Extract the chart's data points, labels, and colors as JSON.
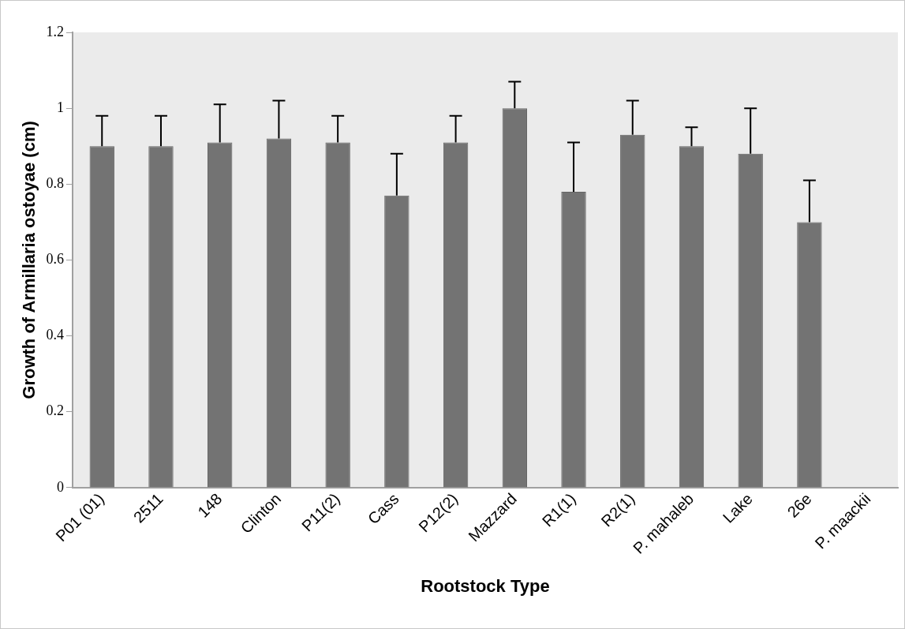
{
  "chart_data": {
    "type": "bar",
    "xlabel": "Rootstock Type",
    "ylabel": "Growth of Armillaria ostoyae (cm)",
    "categories": [
      "P01 (01)",
      "2511",
      "148",
      "Clinton",
      "P11(2)",
      "Cass",
      "P12(2)",
      "Mazzard",
      "R1(1)",
      "R2(1)",
      "P. mahaleb",
      "Lake",
      "26e",
      "P. maackii"
    ],
    "values": [
      0.9,
      0.9,
      0.91,
      0.92,
      0.91,
      0.77,
      0.91,
      1.0,
      0.78,
      0.93,
      0.9,
      0.88,
      0.7,
      0
    ],
    "errors": [
      [
        0.9,
        0.98
      ],
      [
        0.9,
        0.98
      ],
      [
        0.91,
        1.01
      ],
      [
        0.92,
        1.02
      ],
      [
        0.91,
        0.98
      ],
      [
        0.77,
        0.88
      ],
      [
        0.91,
        0.98
      ],
      [
        1.0,
        1.07
      ],
      [
        0.78,
        0.91
      ],
      [
        0.93,
        1.02
      ],
      [
        0.9,
        0.95
      ],
      [
        0.88,
        1.0
      ],
      [
        0.7,
        0.81
      ],
      null
    ],
    "color": "#737373",
    "ylim": [
      0,
      1.2
    ],
    "yticks": [
      0,
      0.2,
      0.4,
      0.6,
      0.8,
      1,
      1.2
    ],
    "grid": false,
    "legend": false
  }
}
